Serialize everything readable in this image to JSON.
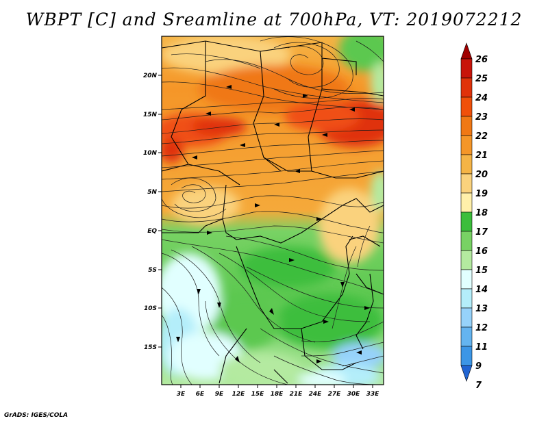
{
  "title": "WBPT [C] and Sreamline at 700hPa, VT: 2019072212",
  "footer": "GrADS: IGES/COLA",
  "map": {
    "region": "Central Africa",
    "lat_ticks": [
      "20N",
      "15N",
      "10N",
      "5N",
      "EQ",
      "5S",
      "10S",
      "15S"
    ],
    "lon_ticks": [
      "3E",
      "6E",
      "9E",
      "12E",
      "15E",
      "18E",
      "21E",
      "24E",
      "27E",
      "30E",
      "33E"
    ]
  },
  "colorbar": {
    "levels": [
      "26",
      "25",
      "24",
      "23",
      "22",
      "21",
      "20",
      "19",
      "18",
      "17",
      "16",
      "15",
      "14",
      "13",
      "12",
      "11",
      "9",
      "7"
    ],
    "colors": [
      "#a00000",
      "#c8140a",
      "#e0320a",
      "#f0500a",
      "#f07814",
      "#f59628",
      "#f5b446",
      "#fad27d",
      "#fff0aa",
      "#3cbe3c",
      "#78d264",
      "#b4eaa0",
      "#e1ffff",
      "#b4eefa",
      "#96d2fa",
      "#64b4f0",
      "#3c96e6",
      "#2064d2"
    ]
  }
}
